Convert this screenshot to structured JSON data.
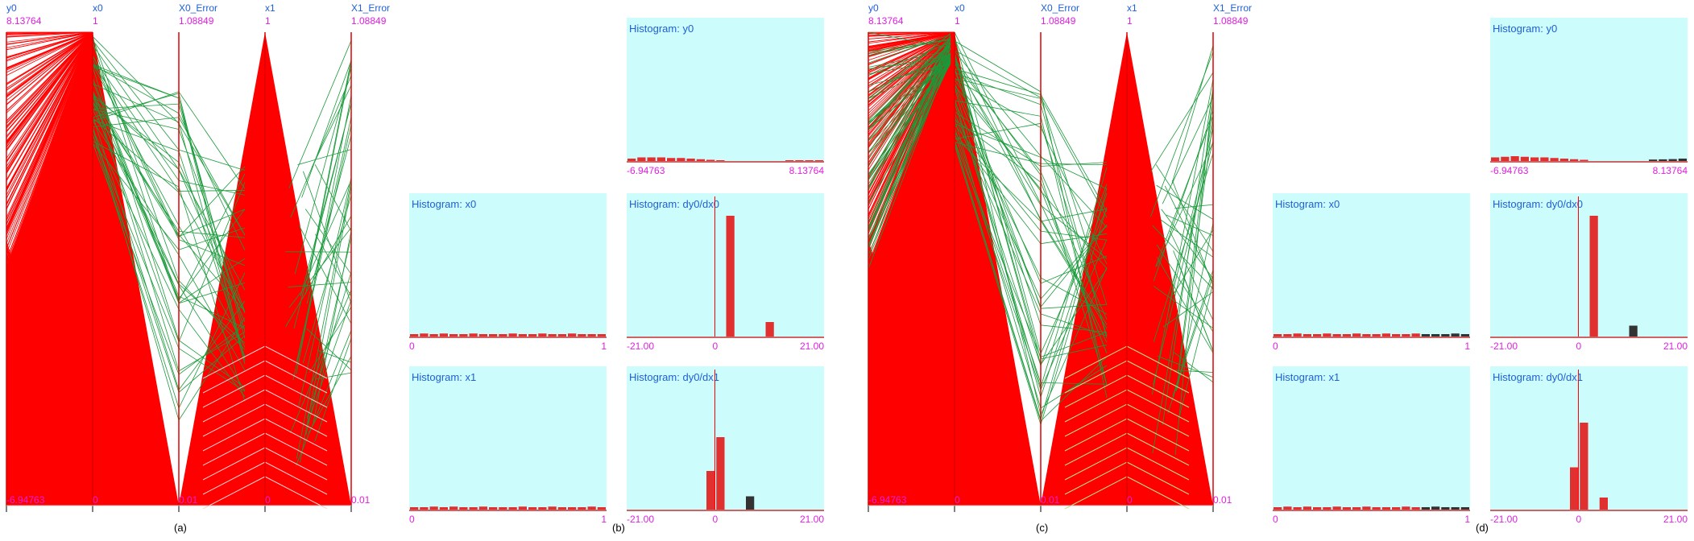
{
  "chart_data": [
    {
      "type": "parallel-coordinates",
      "caption": "(a)",
      "axes": [
        {
          "name": "y0",
          "max": "8.13764",
          "min": "-6.94763"
        },
        {
          "name": "x0",
          "max": "1",
          "min": "0"
        },
        {
          "name": "X0_Error",
          "max": "1.08849",
          "min": "0.01"
        },
        {
          "name": "x1",
          "max": "1",
          "min": "0"
        },
        {
          "name": "X1_Error",
          "max": "1.08849",
          "min": "0.01"
        }
      ],
      "colors": {
        "selected": "#ff0000",
        "unselected": "#1a9a3a",
        "axis": "#e00000"
      }
    },
    {
      "type": "bar",
      "caption": "(b)",
      "histograms": [
        {
          "title": "Histogram: y0",
          "xmin": "-6.94763",
          "xmax": "8.13764",
          "values": [
            0.02,
            0.03,
            0.03,
            0.03,
            0.025,
            0.025,
            0.02,
            0.015,
            0.01,
            0.005,
            0,
            0,
            0,
            0,
            0,
            0,
            0.004,
            0.004,
            0.004,
            0.004
          ]
        },
        {
          "title": "Histogram: x0",
          "xmin": "0",
          "xmax": "1",
          "values": [
            0.02,
            0.025,
            0.02,
            0.025,
            0.02,
            0.02,
            0.025,
            0.02,
            0.02,
            0.02,
            0.025,
            0.02,
            0.02,
            0.025,
            0.02,
            0.02,
            0.025,
            0.02,
            0.02,
            0.02
          ]
        },
        {
          "title": "Histogram: x1",
          "xmin": "0",
          "xmax": "1",
          "values": [
            0.02,
            0.02,
            0.025,
            0.02,
            0.025,
            0.02,
            0.02,
            0.025,
            0.02,
            0.02,
            0.02,
            0.025,
            0.02,
            0.02,
            0.025,
            0.02,
            0.02,
            0.02,
            0.025,
            0.02
          ]
        },
        {
          "title": "Histogram: dy0/dx0",
          "xmin": "-21.00",
          "xmid": "0",
          "xmax": "21.00",
          "values": [
            0,
            0,
            0,
            0,
            0,
            0,
            0,
            0,
            0,
            0,
            1.0,
            0,
            0,
            0,
            0.12,
            0,
            0,
            0,
            0,
            0
          ]
        },
        {
          "title": "Histogram: dy0/dx1",
          "xmin": "-21.00",
          "xmid": "0",
          "xmax": "21.00",
          "values": [
            0,
            0,
            0,
            0,
            0,
            0,
            0,
            0,
            0.32,
            0.6,
            0,
            0,
            0.11,
            0,
            0,
            0,
            0,
            0,
            0,
            0
          ]
        }
      ]
    },
    {
      "type": "parallel-coordinates",
      "caption": "(c)",
      "axes": [
        {
          "name": "y0",
          "max": "8.13764",
          "min": "-6.94763"
        },
        {
          "name": "x0",
          "max": "1",
          "min": "0"
        },
        {
          "name": "X0_Error",
          "max": "1.08849",
          "min": "0.01"
        },
        {
          "name": "x1",
          "max": "1",
          "min": "0"
        },
        {
          "name": "X1_Error",
          "max": "1.08849",
          "min": "0.01"
        }
      ]
    },
    {
      "type": "bar",
      "caption": "(d)",
      "histograms": [
        {
          "title": "Histogram: y0",
          "xmin": "-6.94763",
          "xmax": "8.13764",
          "values": [
            0.03,
            0.035,
            0.04,
            0.035,
            0.03,
            0.03,
            0.025,
            0.02,
            0.015,
            0.01,
            0,
            0,
            0,
            0,
            0,
            0,
            0.012,
            0.014,
            0.016,
            0.02
          ]
        },
        {
          "title": "Histogram: x0",
          "xmin": "0",
          "xmax": "1",
          "values": [
            0.02,
            0.02,
            0.025,
            0.02,
            0.02,
            0.025,
            0.02,
            0.02,
            0.025,
            0.02,
            0.02,
            0.025,
            0.02,
            0.02,
            0.025,
            0.02,
            0.02,
            0.02,
            0.025,
            0.02
          ]
        },
        {
          "title": "Histogram: x1",
          "xmin": "0",
          "xmax": "1",
          "values": [
            0.02,
            0.025,
            0.02,
            0.025,
            0.02,
            0.02,
            0.025,
            0.02,
            0.02,
            0.025,
            0.02,
            0.02,
            0.02,
            0.025,
            0.02,
            0.02,
            0.025,
            0.02,
            0.02,
            0.02
          ]
        },
        {
          "title": "Histogram: dy0/dx0",
          "xmin": "-21.00",
          "xmid": "0",
          "xmax": "21.00",
          "values": [
            0,
            0,
            0,
            0,
            0,
            0,
            0,
            0,
            0,
            0,
            1.0,
            0,
            0,
            0,
            0.09,
            0,
            0,
            0,
            0,
            0
          ]
        },
        {
          "title": "Histogram: dy0/dx1",
          "xmin": "-21.00",
          "xmid": "0",
          "xmax": "21.00",
          "values": [
            0,
            0,
            0,
            0,
            0,
            0,
            0,
            0,
            0.35,
            0.72,
            0,
            0.1,
            0,
            0,
            0,
            0,
            0,
            0,
            0,
            0
          ]
        }
      ]
    }
  ]
}
